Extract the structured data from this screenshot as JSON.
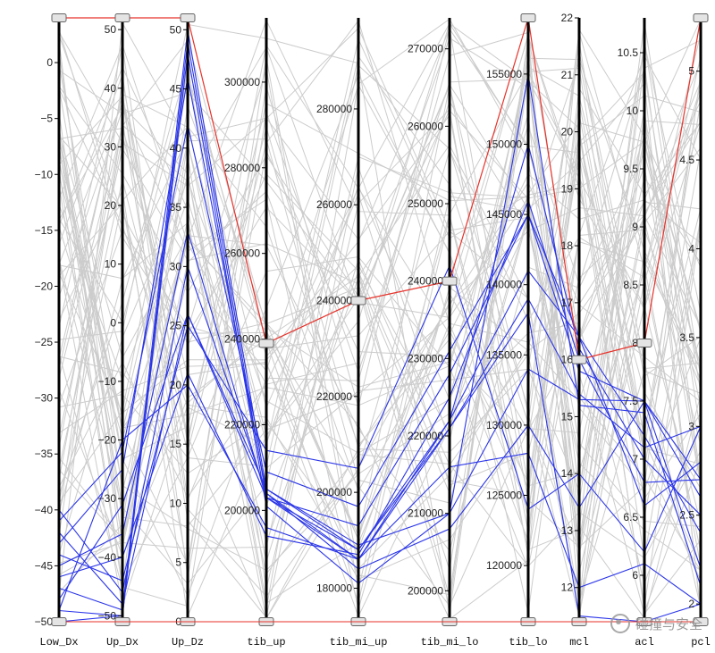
{
  "chart_data": {
    "type": "parallel_coordinates",
    "axes": [
      {
        "name": "Low_Dx",
        "min": -50,
        "max": 4,
        "ticks": [
          0,
          -5,
          -10,
          -15,
          -20,
          -25,
          -30,
          -35,
          -40,
          -45,
          -50
        ]
      },
      {
        "name": "Up_Dx",
        "min": -51,
        "max": 52,
        "ticks": [
          50,
          40,
          30,
          20,
          10,
          0,
          -10,
          -20,
          -30,
          -40,
          -50
        ]
      },
      {
        "name": "Up_Dz",
        "min": 0,
        "max": 51,
        "ticks": [
          50,
          45,
          40,
          35,
          30,
          25,
          20,
          15,
          10,
          5,
          0
        ]
      },
      {
        "name": "tib_up",
        "min": 174000,
        "max": 315000,
        "ticks": [
          300000,
          280000,
          260000,
          240000,
          220000,
          200000
        ]
      },
      {
        "name": "tib_mi_up",
        "min": 173000,
        "max": 299000,
        "ticks": [
          280000,
          260000,
          240000,
          220000,
          200000,
          180000
        ]
      },
      {
        "name": "tib_mi_lo",
        "min": 196000,
        "max": 274000,
        "ticks": [
          270000,
          260000,
          250000,
          240000,
          230000,
          220000,
          210000,
          200000
        ]
      },
      {
        "name": "tib_lo",
        "min": 116000,
        "max": 159000,
        "ticks": [
          155000,
          150000,
          145000,
          140000,
          135000,
          130000,
          125000,
          120000
        ]
      },
      {
        "name": "mcl",
        "min": 11.4,
        "max": 22,
        "ticks": [
          22,
          21,
          20,
          19,
          18,
          17,
          16,
          15,
          14,
          13,
          12
        ]
      },
      {
        "name": "acl",
        "min": 5.6,
        "max": 10.8,
        "ticks": [
          10.5,
          10,
          9.5,
          9,
          8.5,
          8,
          7.5,
          7,
          6.5,
          6
        ]
      },
      {
        "name": "pcl",
        "min": 1.9,
        "max": 5.3,
        "ticks": [
          5,
          4.5,
          4,
          3.5,
          3,
          2.5,
          2
        ]
      }
    ],
    "brush_ranges": [
      [
        -50,
        4
      ],
      [
        -51,
        52
      ],
      [
        0,
        51
      ],
      [
        174000,
        239000
      ],
      [
        173000,
        240000
      ],
      [
        196000,
        240000
      ],
      [
        116000,
        159000
      ],
      [
        11.4,
        16
      ],
      [
        5.6,
        8
      ],
      [
        1.9,
        5.3
      ]
    ],
    "highlight_line": [
      4,
      52,
      51,
      239000,
      240000,
      240000,
      159000,
      16,
      8,
      5.3
    ],
    "selected_lines": [
      [
        -50,
        -50,
        48,
        201000,
        181000,
        210000,
        155000,
        15.2,
        7.4,
        2.1
      ],
      [
        -42,
        -48,
        26,
        205000,
        188000,
        222000,
        150000,
        16.2,
        7.0,
        2.5
      ],
      [
        -46,
        -40,
        21,
        194000,
        187000,
        225000,
        146000,
        16.0,
        6.8,
        2.7
      ],
      [
        -48,
        -31,
        26,
        203000,
        193000,
        228000,
        145000,
        15.8,
        7.5,
        2.7
      ],
      [
        -45,
        -36,
        33,
        203000,
        188000,
        221000,
        139000,
        15.4,
        7.1,
        3.0
      ],
      [
        -41,
        -22,
        42,
        209000,
        197000,
        231000,
        145000,
        16.4,
        7.2,
        2.4
      ],
      [
        -49,
        -50,
        49,
        203000,
        186000,
        222000,
        141000,
        16.4,
        6.6,
        2.8
      ],
      [
        -47,
        -49,
        50,
        205000,
        189000,
        210000,
        134000,
        15.3,
        7.5,
        2.6
      ],
      [
        -44,
        -44,
        25,
        214000,
        205000,
        242000,
        124000,
        14.0,
        6.2,
        3.0
      ],
      [
        -40,
        -46,
        30,
        204000,
        184000,
        208000,
        130000,
        13.4,
        7.5,
        2.2
      ],
      [
        -49,
        -20,
        20,
        196000,
        186000,
        216000,
        128000,
        12.0,
        6.1,
        2.0
      ],
      [
        -43,
        -25,
        46,
        204000,
        186000,
        221000,
        138000,
        11.5,
        5.6,
        2.0
      ]
    ],
    "background_line_count": 70,
    "colors": {
      "highlight": "#e8322a",
      "selected": "#2a35e8",
      "background": "#cccccc",
      "axis": "#000000"
    }
  },
  "watermark": "碰撞与安全"
}
